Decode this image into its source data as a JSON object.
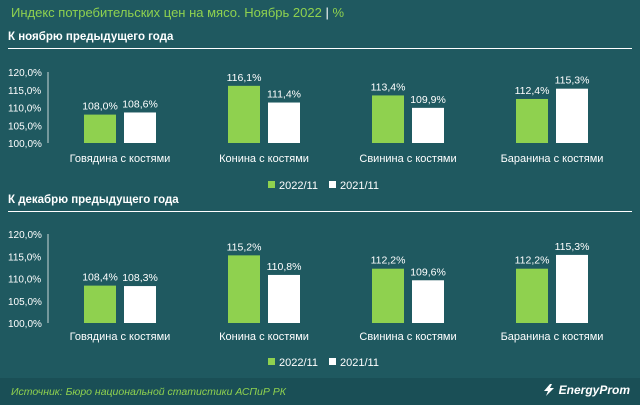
{
  "header": {
    "title": "Индекс потребительских цен на мясо. Ноябрь 2022",
    "unit": "%"
  },
  "colors": {
    "background": "#1f5960",
    "accent": "#8fd14f",
    "bar_current": "#8fd14f",
    "bar_previous": "#ffffff"
  },
  "chart_data": [
    {
      "type": "bar",
      "title": "К ноябрю предыдущего года",
      "categories": [
        "Говядина с костями",
        "Конина с костями",
        "Свинина с костями",
        "Баранина с костями"
      ],
      "series": [
        {
          "name": "2022/11",
          "values": [
            108.0,
            116.1,
            113.4,
            112.4
          ],
          "labels": [
            "108,0%",
            "116,1%",
            "113,4%",
            "112,4%"
          ]
        },
        {
          "name": "2021/11",
          "values": [
            108.6,
            111.4,
            109.9,
            115.3
          ],
          "labels": [
            "108,6%",
            "111,4%",
            "109,9%",
            "115,3%"
          ]
        }
      ],
      "yticks": [
        "120,0%",
        "115,0%",
        "110,0%",
        "105,0%",
        "100,0%"
      ],
      "ylim": [
        100,
        120
      ],
      "legend": "bottom"
    },
    {
      "type": "bar",
      "title": "К декабрю предыдущего года",
      "categories": [
        "Говядина с костями",
        "Конина с костями",
        "Свинина с костями",
        "Баранина с костями"
      ],
      "series": [
        {
          "name": "2022/11",
          "values": [
            108.4,
            115.2,
            112.2,
            112.2
          ],
          "labels": [
            "108,4%",
            "115,2%",
            "112,2%",
            "112,2%"
          ]
        },
        {
          "name": "2021/11",
          "values": [
            108.3,
            110.8,
            109.6,
            115.3
          ],
          "labels": [
            "108,3%",
            "110,8%",
            "109,6%",
            "115,3%"
          ]
        }
      ],
      "yticks": [
        "120,0%",
        "115,0%",
        "110,0%",
        "105,0%",
        "100,0%"
      ],
      "ylim": [
        100,
        120
      ],
      "legend": "bottom"
    }
  ],
  "footer": {
    "source": "Источник: Бюро национальной статистики АСПиР РК",
    "logo": "EnergyProm"
  }
}
